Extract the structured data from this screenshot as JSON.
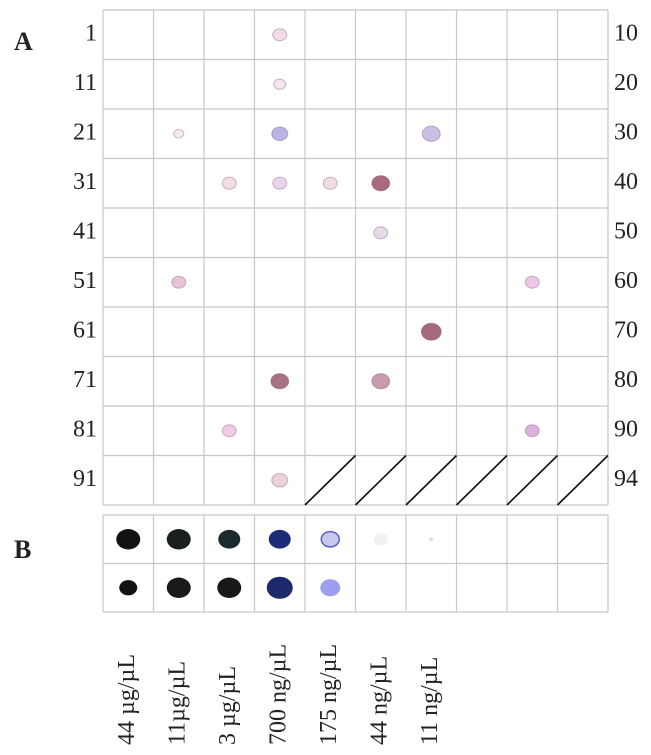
{
  "panel_a": {
    "label": "A",
    "row_start_labels": [
      "1",
      "11",
      "21",
      "31",
      "41",
      "51",
      "61",
      "71",
      "81",
      "91"
    ],
    "row_end_labels": [
      "10",
      "20",
      "30",
      "40",
      "50",
      "60",
      "70",
      "80",
      "90",
      "94"
    ]
  },
  "panel_b": {
    "label": "B",
    "concentrations": [
      "44 µg/µL",
      "11µg/µL",
      "3 µg/µL",
      "700 ng/µL",
      "175 ng/µL",
      "44 ng/µL",
      "11 ng/µL"
    ]
  }
}
